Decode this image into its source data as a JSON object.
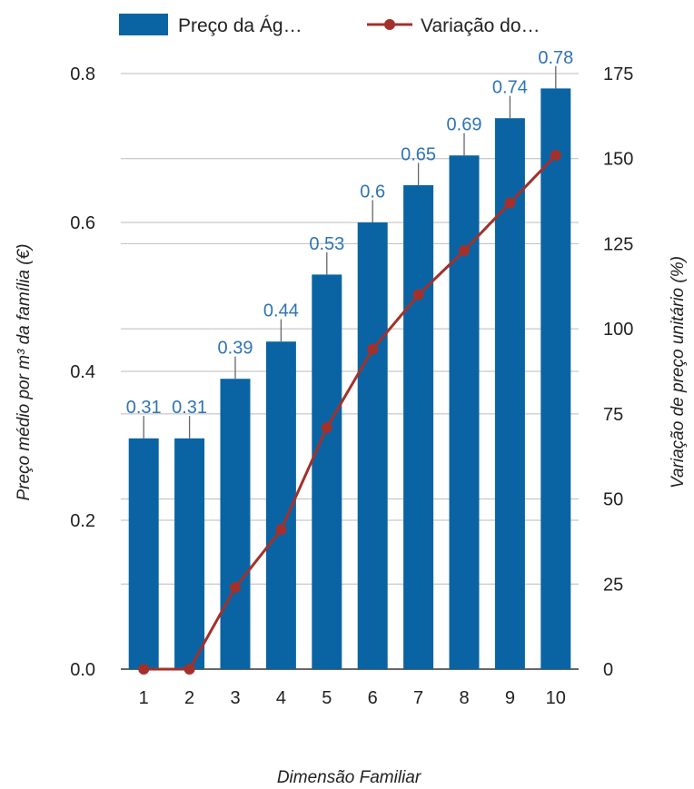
{
  "chart_data": {
    "type": "bar",
    "categories": [
      "1",
      "2",
      "3",
      "4",
      "5",
      "6",
      "7",
      "8",
      "9",
      "10"
    ],
    "series": [
      {
        "name": "Preço da Ág…",
        "type": "bar",
        "axis": "left",
        "values": [
          0.31,
          0.31,
          0.39,
          0.44,
          0.53,
          0.6,
          0.65,
          0.69,
          0.74,
          0.78
        ],
        "labels": [
          "0.31",
          "0.31",
          "0.39",
          "0.44",
          "0.53",
          "0.6",
          "0.65",
          "0.69",
          "0.74",
          "0.78"
        ],
        "error_high": [
          0.34,
          0.34,
          0.42,
          0.47,
          0.56,
          0.63,
          0.68,
          0.72,
          0.77,
          0.81
        ],
        "color": "#0a64a4"
      },
      {
        "name": "Variação do…",
        "type": "line",
        "axis": "right",
        "values": [
          0,
          0,
          24,
          41,
          71,
          94,
          110,
          123,
          137,
          151
        ],
        "color": "#a3312b"
      }
    ],
    "xlabel": "Dimensão Familiar",
    "ylabel": "Preço médio por m³ da família (€)",
    "y2label": "Variação de preço unitário (%)",
    "ylim": [
      0,
      0.8
    ],
    "y2lim": [
      0,
      175
    ],
    "yticks": [
      "0.0",
      "0.2",
      "0.4",
      "0.6",
      "0.8"
    ],
    "y2ticks": [
      "0",
      "25",
      "50",
      "75",
      "100",
      "125",
      "150",
      "175"
    ],
    "grid": true,
    "legend": "top"
  }
}
